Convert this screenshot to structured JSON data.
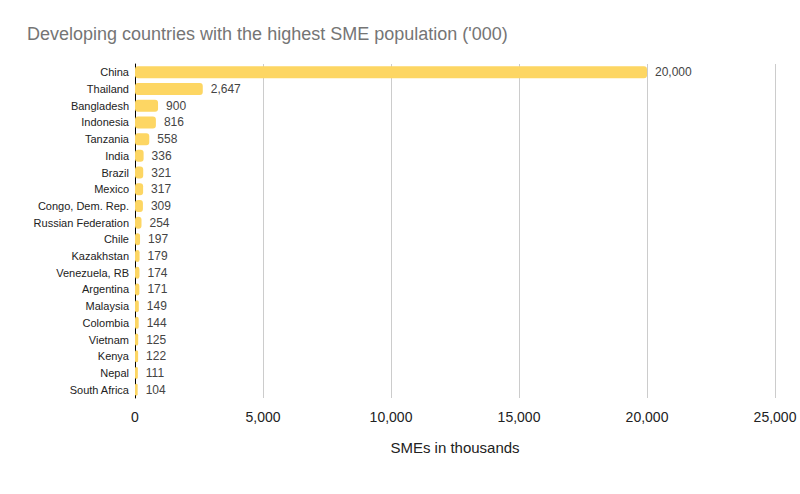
{
  "chart_data": {
    "type": "bar",
    "orientation": "horizontal",
    "title": "Developing countries with the highest SME population ('000)",
    "xlabel": "SMEs in thousands",
    "categories": [
      "China",
      "Thailand",
      "Bangladesh",
      "Indonesia",
      "Tanzania",
      "India",
      "Brazil",
      "Mexico",
      "Congo, Dem. Rep.",
      "Russian Federation",
      "Chile",
      "Kazakhstan",
      "Venezuela, RB",
      "Argentina",
      "Malaysia",
      "Colombia",
      "Vietnam",
      "Kenya",
      "Nepal",
      "South Africa"
    ],
    "values": [
      20000,
      2647,
      900,
      816,
      558,
      336,
      321,
      317,
      309,
      254,
      197,
      179,
      174,
      171,
      149,
      144,
      125,
      122,
      111,
      104
    ],
    "value_labels": [
      "20,000",
      "2,647",
      "900",
      "816",
      "558",
      "336",
      "321",
      "317",
      "309",
      "254",
      "197",
      "179",
      "174",
      "171",
      "149",
      "144",
      "125",
      "122",
      "111",
      "104"
    ],
    "color": "#fdd663",
    "xlim": [
      0,
      25000
    ],
    "xticks": [
      0,
      {
        "value": 5000,
        "label": "5,000"
      },
      {
        "value": 10000,
        "label": "10,000"
      },
      {
        "value": 15000,
        "label": "15,000"
      },
      {
        "value": 20000,
        "label": "20,000"
      },
      {
        "value": 25000,
        "label": "25,000"
      }
    ],
    "grid": true,
    "data_labels": true
  }
}
